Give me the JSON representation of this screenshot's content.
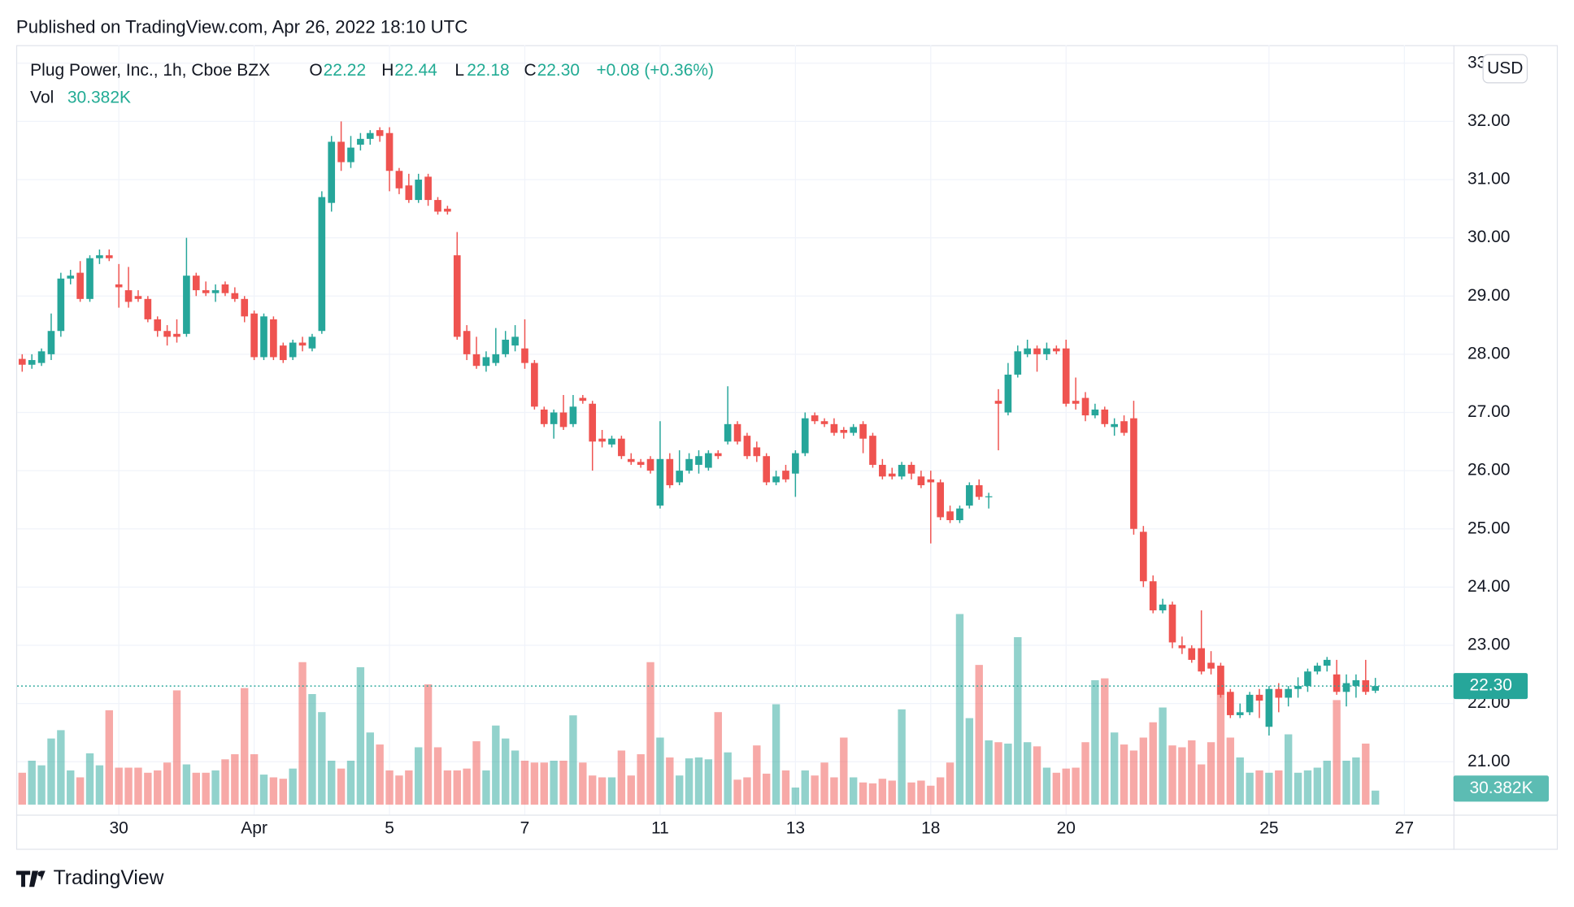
{
  "header": {
    "published": "Published on TradingView.com, Apr 26, 2022 18:10 UTC"
  },
  "footer": {
    "brand": "TradingView"
  },
  "chart_data": {
    "type": "candlestick",
    "legend": {
      "symbol": "Plug Power, Inc., 1h, Cboe BZX",
      "o_label": "O",
      "open": "22.22",
      "h_label": "H",
      "high": "22.44",
      "l_label": "L",
      "low": "22.18",
      "c_label": "C",
      "close": "22.30",
      "change": "+0.08 (+0.36%)",
      "vol_label": "Vol",
      "volume": "30.382K"
    },
    "currency": "USD",
    "up_color": "#26a69a",
    "down_color": "#ef5350",
    "grid": true,
    "ylim": [
      20.09,
      33.31
    ],
    "yticks": [
      {
        "value": 21,
        "label": "21.00"
      },
      {
        "value": 22,
        "label": "22.00"
      },
      {
        "value": 23,
        "label": "23.00"
      },
      {
        "value": 24,
        "label": "24.00"
      },
      {
        "value": 25,
        "label": "25.00"
      },
      {
        "value": 26,
        "label": "26.00"
      },
      {
        "value": 27,
        "label": "27.00"
      },
      {
        "value": 28,
        "label": "28.00"
      },
      {
        "value": 29,
        "label": "29.00"
      },
      {
        "value": 30,
        "label": "30.00"
      },
      {
        "value": 31,
        "label": "31.00"
      },
      {
        "value": 32,
        "label": "32.00"
      },
      {
        "value": 33,
        "label": "33.00"
      }
    ],
    "last_price": {
      "value": 22.3,
      "label": "22.30"
    },
    "categories": [
      null,
      null,
      null,
      null,
      null,
      null,
      null,
      null,
      null,
      null,
      "30",
      null,
      null,
      null,
      null,
      null,
      null,
      null,
      null,
      null,
      null,
      null,
      null,
      null,
      "Apr",
      null,
      null,
      null,
      null,
      null,
      null,
      null,
      null,
      null,
      null,
      null,
      null,
      null,
      "5",
      null,
      null,
      null,
      null,
      null,
      null,
      null,
      null,
      null,
      null,
      null,
      null,
      null,
      "7",
      null,
      null,
      null,
      null,
      null,
      null,
      null,
      null,
      null,
      null,
      null,
      null,
      null,
      "11",
      null,
      null,
      null,
      null,
      null,
      null,
      null,
      null,
      null,
      null,
      null,
      null,
      null,
      "13",
      null,
      null,
      null,
      null,
      null,
      null,
      null,
      null,
      null,
      null,
      null,
      null,
      null,
      "18",
      null,
      null,
      null,
      null,
      null,
      null,
      null,
      null,
      null,
      null,
      null,
      null,
      null,
      "20",
      null,
      null,
      null,
      null,
      null,
      null,
      null,
      null,
      null,
      null,
      null,
      null,
      null,
      null,
      null,
      null,
      null,
      null,
      null,
      null,
      "25",
      null,
      null,
      null,
      null,
      null,
      null,
      null,
      null,
      null,
      null,
      null,
      null,
      null,
      "27",
      null,
      null,
      null,
      null
    ],
    "open": [
      27.92,
      27.82,
      27.85,
      28.0,
      28.4,
      29.3,
      29.4,
      28.95,
      29.65,
      29.7,
      29.2,
      29.1,
      29.0,
      28.95,
      28.6,
      28.4,
      28.35,
      28.35,
      29.35,
      29.1,
      29.05,
      29.2,
      29.05,
      28.95,
      28.7,
      27.95,
      28.6,
      28.15,
      27.95,
      28.2,
      28.1,
      28.4,
      30.6,
      31.65,
      31.3,
      31.6,
      31.7,
      31.85,
      31.8,
      31.15,
      30.9,
      30.65,
      31.05,
      30.65,
      30.5,
      29.7,
      28.4,
      28.0,
      27.8,
      27.85,
      28.0,
      28.15,
      28.1,
      27.85,
      27.05,
      26.8,
      27.0,
      26.8,
      27.25,
      27.15,
      26.55,
      26.45,
      26.55,
      26.2,
      26.15,
      26.2,
      25.4,
      26.2,
      25.8,
      26.0,
      26.1,
      26.05,
      26.3,
      26.5,
      26.8,
      26.6,
      26.4,
      26.25,
      25.8,
      26.0,
      25.95,
      26.3,
      26.95,
      26.85,
      26.8,
      26.7,
      26.65,
      26.8,
      26.6,
      26.1,
      25.95,
      25.9,
      26.1,
      25.9,
      25.85,
      25.8,
      25.3,
      25.15,
      25.4,
      25.75,
      25.55,
      27.2,
      27.0,
      27.65,
      28.0,
      28.1,
      28.0,
      28.1,
      28.1,
      27.2,
      27.25,
      26.95,
      27.05,
      26.75,
      26.85,
      26.9,
      24.95,
      24.1,
      23.6,
      23.7,
      23.0,
      22.95,
      22.95,
      22.7,
      22.65,
      22.2,
      21.8,
      21.85,
      22.15,
      21.6,
      22.25,
      22.1,
      22.25,
      22.3,
      22.55,
      22.65,
      22.5,
      22.2,
      22.3,
      22.4,
      22.22,
      null,
      null,
      null,
      null,
      null,
      null,
      null
    ],
    "high": [
      28.0,
      28.0,
      28.1,
      28.7,
      29.4,
      29.45,
      29.6,
      29.7,
      29.8,
      29.8,
      29.55,
      29.5,
      29.1,
      29.0,
      28.65,
      28.5,
      28.6,
      30.0,
      29.4,
      29.25,
      29.2,
      29.25,
      29.15,
      29.0,
      28.75,
      28.7,
      28.65,
      28.2,
      28.25,
      28.3,
      28.35,
      30.8,
      31.75,
      32.0,
      31.75,
      31.8,
      31.85,
      31.9,
      31.9,
      31.2,
      31.1,
      31.1,
      31.1,
      30.7,
      30.55,
      30.1,
      28.5,
      28.3,
      28.05,
      28.45,
      28.4,
      28.5,
      28.6,
      27.9,
      27.1,
      27.05,
      27.3,
      27.3,
      27.3,
      27.2,
      26.7,
      26.6,
      26.6,
      26.3,
      26.2,
      26.25,
      26.85,
      26.3,
      26.35,
      26.3,
      26.35,
      26.35,
      26.35,
      27.45,
      26.85,
      26.65,
      26.5,
      26.3,
      26.0,
      26.1,
      26.35,
      27.0,
      27.0,
      26.9,
      26.9,
      26.75,
      26.8,
      26.85,
      26.65,
      26.2,
      26.05,
      26.15,
      26.15,
      26.0,
      26.0,
      25.85,
      25.4,
      25.4,
      25.8,
      25.85,
      25.62,
      27.4,
      27.85,
      28.15,
      28.25,
      28.15,
      28.2,
      28.15,
      28.25,
      27.6,
      27.35,
      27.15,
      27.1,
      26.9,
      26.95,
      27.2,
      25.05,
      24.2,
      23.8,
      23.75,
      23.15,
      23.0,
      23.6,
      22.9,
      22.7,
      22.25,
      22.0,
      22.2,
      22.25,
      22.3,
      22.35,
      22.3,
      22.45,
      22.6,
      22.7,
      22.8,
      22.75,
      22.5,
      22.5,
      22.75,
      22.44,
      null,
      null,
      null,
      null,
      null,
      null,
      null
    ],
    "low": [
      27.7,
      27.75,
      27.8,
      27.9,
      28.3,
      29.2,
      28.9,
      28.9,
      29.55,
      29.6,
      28.8,
      28.8,
      28.9,
      28.55,
      28.3,
      28.15,
      28.2,
      28.3,
      29.0,
      29.0,
      28.9,
      29.0,
      28.9,
      28.55,
      27.9,
      27.9,
      27.9,
      27.85,
      27.9,
      28.05,
      28.05,
      28.35,
      30.45,
      31.15,
      31.2,
      31.5,
      31.6,
      31.65,
      30.8,
      30.75,
      30.6,
      30.6,
      30.55,
      30.4,
      30.4,
      28.25,
      27.9,
      27.75,
      27.7,
      27.8,
      27.95,
      28.05,
      27.75,
      27.05,
      26.75,
      26.55,
      26.7,
      26.75,
      27.15,
      26.0,
      26.4,
      26.4,
      26.2,
      26.1,
      26.05,
      25.95,
      25.35,
      25.7,
      25.75,
      25.95,
      25.95,
      26.0,
      26.2,
      26.45,
      26.45,
      26.2,
      26.15,
      25.75,
      25.75,
      25.8,
      25.55,
      26.25,
      26.8,
      26.75,
      26.6,
      26.55,
      26.6,
      26.3,
      26.05,
      25.85,
      25.85,
      25.85,
      25.85,
      25.7,
      24.75,
      25.15,
      25.1,
      25.1,
      25.35,
      25.5,
      25.35,
      26.35,
      26.95,
      27.6,
      27.95,
      27.7,
      27.9,
      28.0,
      27.1,
      27.05,
      26.85,
      26.9,
      26.75,
      26.6,
      26.6,
      24.9,
      24.0,
      23.55,
      23.55,
      22.95,
      22.85,
      22.7,
      22.5,
      22.5,
      22.1,
      21.75,
      21.75,
      21.8,
      21.75,
      21.45,
      21.85,
      21.95,
      22.1,
      22.2,
      22.5,
      22.55,
      22.15,
      21.95,
      22.1,
      22.15,
      22.18,
      null,
      null,
      null,
      null,
      null,
      null,
      null
    ],
    "close": [
      27.82,
      27.9,
      28.05,
      28.4,
      29.3,
      29.35,
      28.95,
      29.65,
      29.7,
      29.65,
      29.15,
      28.9,
      28.95,
      28.6,
      28.4,
      28.3,
      28.3,
      29.35,
      29.1,
      29.05,
      29.1,
      29.05,
      28.95,
      28.65,
      27.95,
      28.65,
      27.95,
      27.9,
      28.2,
      28.15,
      28.3,
      30.7,
      31.65,
      31.3,
      31.55,
      31.7,
      31.8,
      31.75,
      31.15,
      30.85,
      30.65,
      31.0,
      30.65,
      30.45,
      30.45,
      28.3,
      28.0,
      27.8,
      27.95,
      28.0,
      28.25,
      28.3,
      27.85,
      27.1,
      26.8,
      27.0,
      26.75,
      27.1,
      27.2,
      26.5,
      26.5,
      26.55,
      26.25,
      26.15,
      26.1,
      26.0,
      26.2,
      25.75,
      26.0,
      26.2,
      26.25,
      26.3,
      26.25,
      26.8,
      26.5,
      26.25,
      26.25,
      25.8,
      25.9,
      25.85,
      26.3,
      26.9,
      26.85,
      26.8,
      26.65,
      26.65,
      26.75,
      26.55,
      26.1,
      25.9,
      25.9,
      26.1,
      25.95,
      25.75,
      25.8,
      25.2,
      25.15,
      25.35,
      25.75,
      25.55,
      25.56,
      27.15,
      27.65,
      28.05,
      28.1,
      28.0,
      28.1,
      28.05,
      27.15,
      27.15,
      26.95,
      27.05,
      26.8,
      26.8,
      26.65,
      25.0,
      24.1,
      23.6,
      23.7,
      23.05,
      22.95,
      22.75,
      22.55,
      22.6,
      22.15,
      21.8,
      21.85,
      22.15,
      22.05,
      22.25,
      22.1,
      22.25,
      22.3,
      22.55,
      22.65,
      22.75,
      22.2,
      22.35,
      22.4,
      22.2,
      22.3,
      null,
      null,
      null,
      null,
      null,
      null,
      null
    ],
    "volume": [
      69,
      95,
      85,
      143,
      161,
      74,
      59,
      111,
      85,
      204,
      80,
      80,
      80,
      69,
      74,
      91,
      247,
      87,
      69,
      69,
      74,
      98,
      109,
      252,
      109,
      65,
      59,
      56,
      78,
      308,
      239,
      200,
      95,
      78,
      95,
      297,
      156,
      130,
      74,
      63,
      74,
      124,
      260,
      124,
      74,
      74,
      78,
      137,
      74,
      171,
      143,
      117,
      95,
      91,
      91,
      95,
      95,
      193,
      91,
      63,
      59,
      59,
      117,
      63,
      109,
      308,
      145,
      102,
      63,
      100,
      102,
      98,
      200,
      113,
      54,
      59,
      128,
      67,
      217,
      74,
      37,
      74,
      63,
      91,
      59,
      145,
      59,
      48,
      46,
      56,
      52,
      206,
      48,
      52,
      41,
      59,
      91,
      412,
      187,
      302,
      139,
      135,
      132,
      362,
      135,
      126,
      80,
      69,
      78,
      80,
      135,
      269,
      273,
      156,
      130,
      117,
      145,
      178,
      210,
      128,
      124,
      139,
      87,
      135,
      260,
      145,
      102,
      69,
      74,
      69,
      74,
      152,
      69,
      74,
      80,
      95,
      226,
      95,
      102,
      132,
      30.382,
      null,
      null,
      null,
      null,
      null,
      null,
      null
    ]
  }
}
